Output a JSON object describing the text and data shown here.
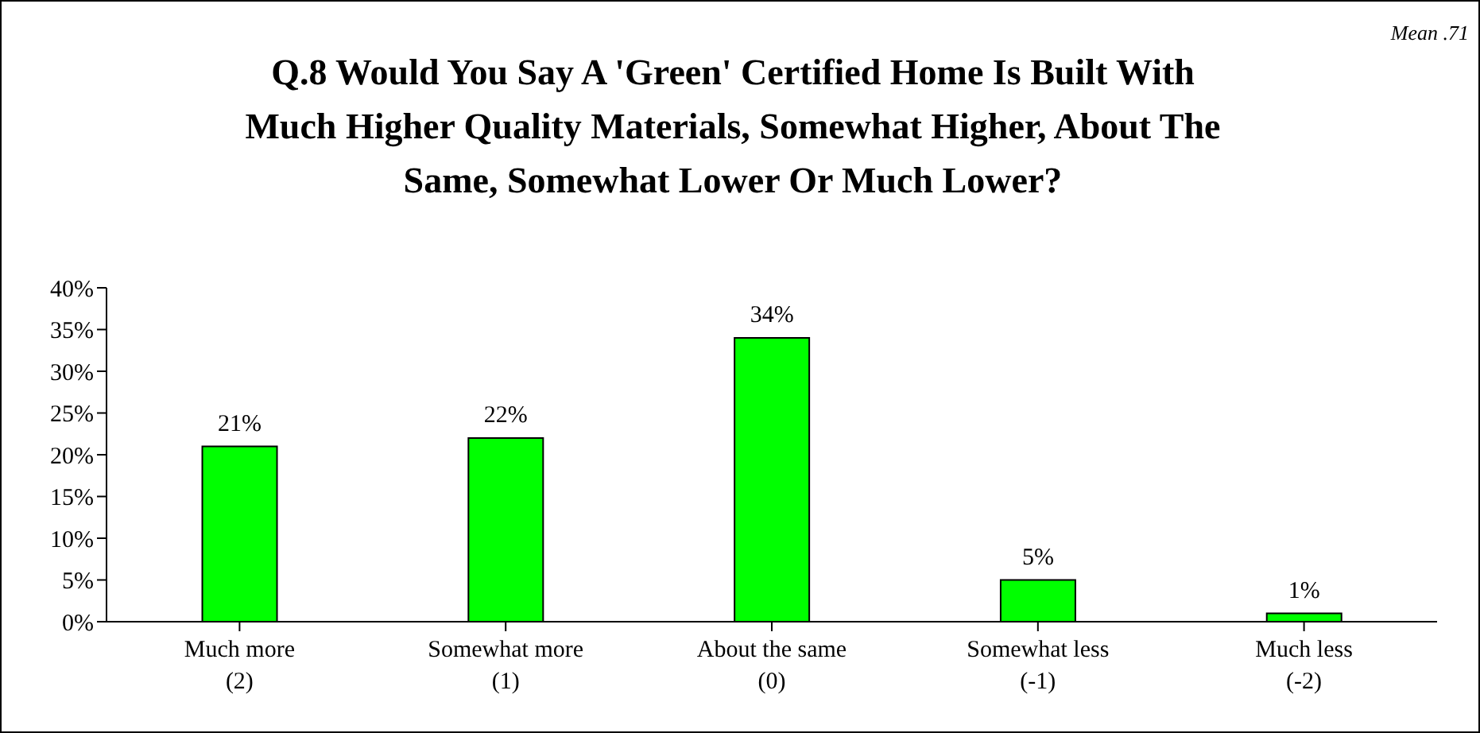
{
  "chart_data": {
    "type": "bar",
    "title": "Q.8  Would You Say A 'Green' Certified Home Is Built With Much Higher Quality Materials, Somewhat Higher, About The Same, Somewhat Lower Or Much Lower?",
    "annotations": [
      "Mean .71"
    ],
    "categories": [
      "Much more\n(2)",
      "Somewhat more\n(1)",
      "About the same\n(0)",
      "Somewhat less\n(-1)",
      "Much less\n(-2)"
    ],
    "values": [
      21,
      22,
      34,
      5,
      1
    ],
    "value_labels": [
      "21%",
      "22%",
      "34%",
      "5%",
      "1%"
    ],
    "color": "#00ff00",
    "ylim": [
      0,
      40
    ],
    "yticks": [
      {
        "value": 0,
        "label": "0%"
      },
      {
        "value": 5,
        "label": "5%"
      },
      {
        "value": 10,
        "label": "10%"
      },
      {
        "value": 15,
        "label": "15%"
      },
      {
        "value": 20,
        "label": "20%"
      },
      {
        "value": 25,
        "label": "25%"
      },
      {
        "value": 30,
        "label": "30%"
      },
      {
        "value": 35,
        "label": "35%"
      },
      {
        "value": 40,
        "label": "40%"
      }
    ],
    "grid": false
  }
}
